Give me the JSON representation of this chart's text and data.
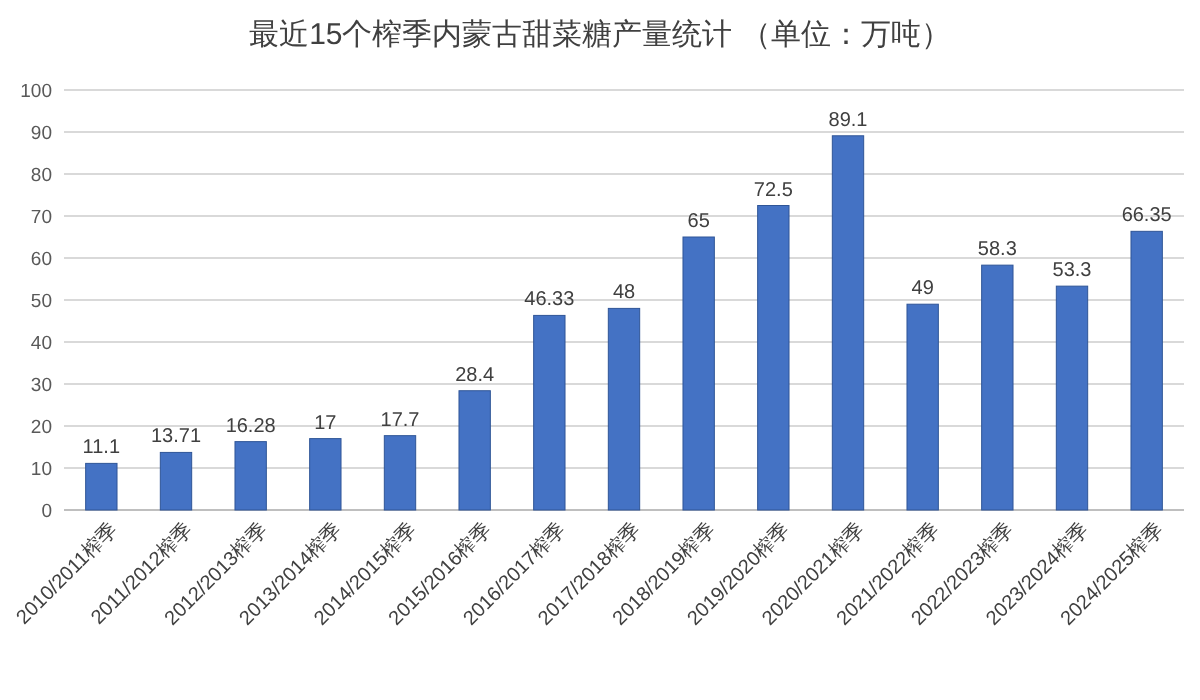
{
  "chart_data": {
    "type": "bar",
    "title": "最近15个榨季内蒙古甜菜糖产量统计 （单位：万吨）",
    "categories": [
      "2010/2011榨季",
      "2011/2012榨季",
      "2012/2013榨季",
      "2013/2014榨季",
      "2014/2015榨季",
      "2015/2016榨季",
      "2016/2017榨季",
      "2017/2018榨季",
      "2018/2019榨季",
      "2019/2020榨季",
      "2020/2021榨季",
      "2021/2022榨季",
      "2022/2023榨季",
      "2023/2024榨季",
      "2024/2025榨季"
    ],
    "values": [
      11.1,
      13.71,
      16.28,
      17,
      17.7,
      28.4,
      46.33,
      48,
      65,
      72.5,
      89.1,
      49,
      58.3,
      53.3,
      66.35
    ],
    "color": "#4472c4",
    "ylim": [
      0,
      100
    ],
    "yticks": [
      0,
      10,
      20,
      30,
      40,
      50,
      60,
      70,
      80,
      90,
      100
    ],
    "grid": "y",
    "data_labels": true
  }
}
